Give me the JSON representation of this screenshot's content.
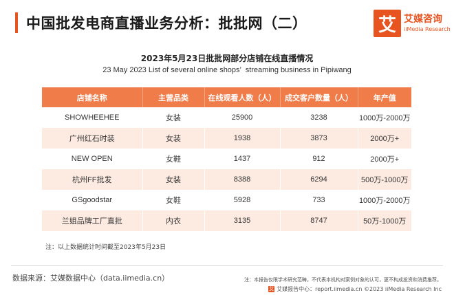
{
  "header": {
    "title": "中国批发电商直播业务分析：批批网（二）",
    "accent_color": "#e8541f"
  },
  "logo": {
    "mark": "艾",
    "name_cn": "艾媒咨询",
    "name_en": "iiMedia Research"
  },
  "table_title": {
    "cn": "2023年5月23日批批网部分店铺在线直播情况",
    "en": "23 May 2023 List of several online shops’  streaming business in Pipiwang"
  },
  "table": {
    "columns": [
      "店铺名称",
      "主营品类",
      "在线观看人数（人）",
      "成交客户数量（人）",
      "年产值"
    ],
    "rows": [
      [
        "SHOWHEEHEE",
        "女装",
        "25900",
        "3238",
        "1000万-2000万"
      ],
      [
        "广州红石时装",
        "女装",
        "1938",
        "3873",
        "2000万+"
      ],
      [
        "NEW OPEN",
        "女鞋",
        "1437",
        "912",
        "2000万+"
      ],
      [
        "杭州FF批发",
        "女装",
        "8388",
        "6294",
        "500万-1000万"
      ],
      [
        "GSgoodstar",
        "女鞋",
        "5928",
        "733",
        "1000万-2000万"
      ],
      [
        "兰姐品牌工厂直批",
        "内衣",
        "3135",
        "8747",
        "50万-1000万"
      ]
    ],
    "header_color": "#f07c4a",
    "stripe_color": "#fdebe2"
  },
  "note": "注：以上数据统计时间截至2023年5月23日",
  "source": "数据来源：艾媒数据中心（data.iimedia.cn）",
  "disclaimer": "注：本报告仅限学术研究范畴，不代表本机构对案例对象的认可，更不构成投资和消费推荐。",
  "footer": {
    "icon": "艾",
    "text": "艾媒报告中心：report.iimedia.cn  ©2023  iiMedia Research  Inc"
  }
}
